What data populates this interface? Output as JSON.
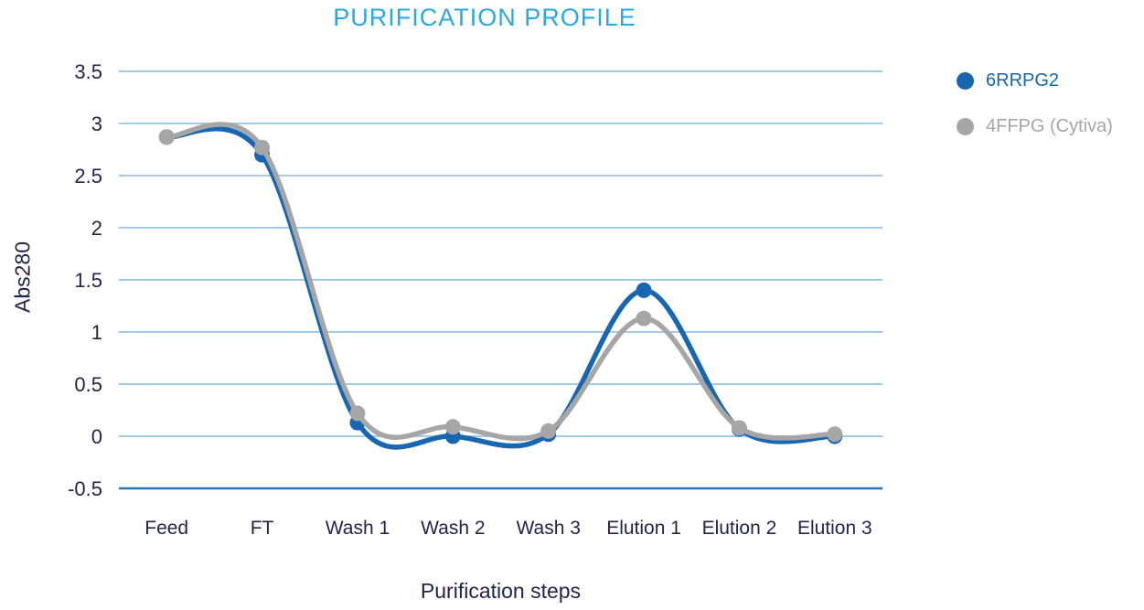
{
  "title": "PURIFICATION PROFILE",
  "chart_data": {
    "type": "line",
    "title": "PURIFICATION PROFILE",
    "xlabel": "Purification steps",
    "ylabel": "Abs280",
    "categories": [
      "Feed",
      "FT",
      "Wash 1",
      "Wash 2",
      "Wash 3",
      "Elution 1",
      "Elution 2",
      "Elution 3"
    ],
    "series": [
      {
        "name": "6RRPG2",
        "color": "#1666B1",
        "values": [
          2.87,
          2.7,
          0.13,
          0.0,
          0.02,
          1.4,
          0.07,
          0.0
        ]
      },
      {
        "name": "4FFPG (Cytiva)",
        "color": "#A6A6A6",
        "values": [
          2.87,
          2.77,
          0.22,
          0.09,
          0.05,
          1.13,
          0.08,
          0.02
        ]
      }
    ],
    "ylim": [
      -0.5,
      3.5
    ],
    "yticks": [
      3.5,
      3,
      2.5,
      2,
      1.5,
      1,
      0.5,
      0,
      -0.5
    ],
    "ytick_labels": [
      "3.5",
      "3",
      "2.5",
      "2",
      "1.5",
      "1",
      "0.5",
      "0",
      "-0.5"
    ],
    "grid": true,
    "smooth": true,
    "legend_position": "right"
  },
  "colors": {
    "title": "#2AA8E0",
    "axis_text": "#21254A",
    "gridline": "#A3CBE8",
    "baseline": "#2E75B6",
    "background": "#FFFFFF"
  }
}
